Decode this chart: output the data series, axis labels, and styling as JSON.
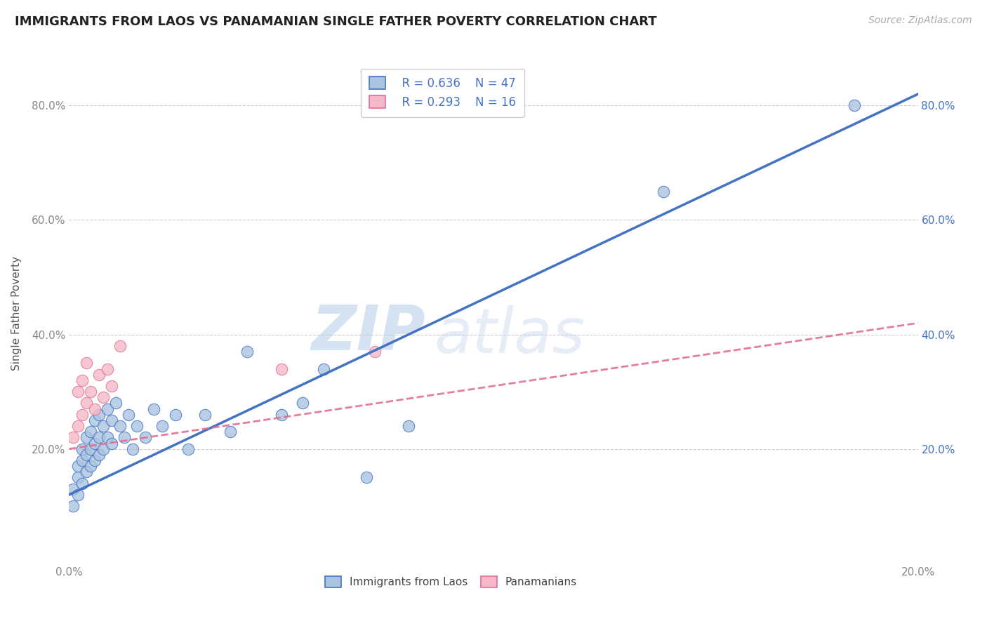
{
  "title": "IMMIGRANTS FROM LAOS VS PANAMANIAN SINGLE FATHER POVERTY CORRELATION CHART",
  "source": "Source: ZipAtlas.com",
  "ylabel": "Single Father Poverty",
  "xlim": [
    0.0,
    0.2
  ],
  "ylim": [
    0.0,
    0.875
  ],
  "laos_R": "0.636",
  "laos_N": "47",
  "panama_R": "0.293",
  "panama_N": "16",
  "laos_color": "#aac4e0",
  "panama_color": "#f5b8c8",
  "laos_line_color": "#4472c4",
  "panama_line_color": "#e07090",
  "watermark_zip": "ZIP",
  "watermark_atlas": "atlas",
  "laos_scatter_x": [
    0.001,
    0.001,
    0.002,
    0.002,
    0.002,
    0.003,
    0.003,
    0.003,
    0.004,
    0.004,
    0.004,
    0.005,
    0.005,
    0.005,
    0.006,
    0.006,
    0.006,
    0.007,
    0.007,
    0.007,
    0.008,
    0.008,
    0.009,
    0.009,
    0.01,
    0.01,
    0.011,
    0.012,
    0.013,
    0.014,
    0.015,
    0.016,
    0.018,
    0.02,
    0.022,
    0.025,
    0.028,
    0.032,
    0.038,
    0.042,
    0.05,
    0.055,
    0.06,
    0.07,
    0.08,
    0.14,
    0.185
  ],
  "laos_scatter_y": [
    0.1,
    0.13,
    0.12,
    0.15,
    0.17,
    0.14,
    0.18,
    0.2,
    0.16,
    0.19,
    0.22,
    0.17,
    0.2,
    0.23,
    0.18,
    0.21,
    0.25,
    0.19,
    0.22,
    0.26,
    0.2,
    0.24,
    0.22,
    0.27,
    0.21,
    0.25,
    0.28,
    0.24,
    0.22,
    0.26,
    0.2,
    0.24,
    0.22,
    0.27,
    0.24,
    0.26,
    0.2,
    0.26,
    0.23,
    0.37,
    0.26,
    0.28,
    0.34,
    0.15,
    0.24,
    0.65,
    0.8
  ],
  "panama_scatter_x": [
    0.001,
    0.002,
    0.002,
    0.003,
    0.003,
    0.004,
    0.004,
    0.005,
    0.006,
    0.007,
    0.008,
    0.009,
    0.01,
    0.012,
    0.05,
    0.072
  ],
  "panama_scatter_y": [
    0.22,
    0.24,
    0.3,
    0.26,
    0.32,
    0.28,
    0.35,
    0.3,
    0.27,
    0.33,
    0.29,
    0.34,
    0.31,
    0.38,
    0.34,
    0.37
  ],
  "laos_line_x0": 0.0,
  "laos_line_y0": 0.12,
  "laos_line_x1": 0.2,
  "laos_line_y1": 0.82,
  "panama_line_x0": 0.0,
  "panama_line_y0": 0.2,
  "panama_line_x1": 0.2,
  "panama_line_y1": 0.42,
  "xticks": [
    0.0,
    0.05,
    0.1,
    0.15,
    0.2
  ],
  "yticks": [
    0.0,
    0.2,
    0.4,
    0.6,
    0.8
  ],
  "xtick_labels": [
    "0.0%",
    "",
    "",
    "",
    "20.0%"
  ],
  "ytick_left_labels": [
    "",
    "20.0%",
    "40.0%",
    "60.0%",
    "80.0%"
  ],
  "ytick_right_labels": [
    "",
    "20.0%",
    "40.0%",
    "60.0%",
    "80.0%"
  ],
  "legend_top_labels": [
    "  R = 0.636    N = 47",
    "  R = 0.293    N = 16"
  ],
  "legend_bottom_labels": [
    "Immigrants from Laos",
    "Panamanians"
  ],
  "title_fontsize": 13,
  "source_fontsize": 10,
  "axis_label_fontsize": 11,
  "ylabel_fontsize": 11
}
